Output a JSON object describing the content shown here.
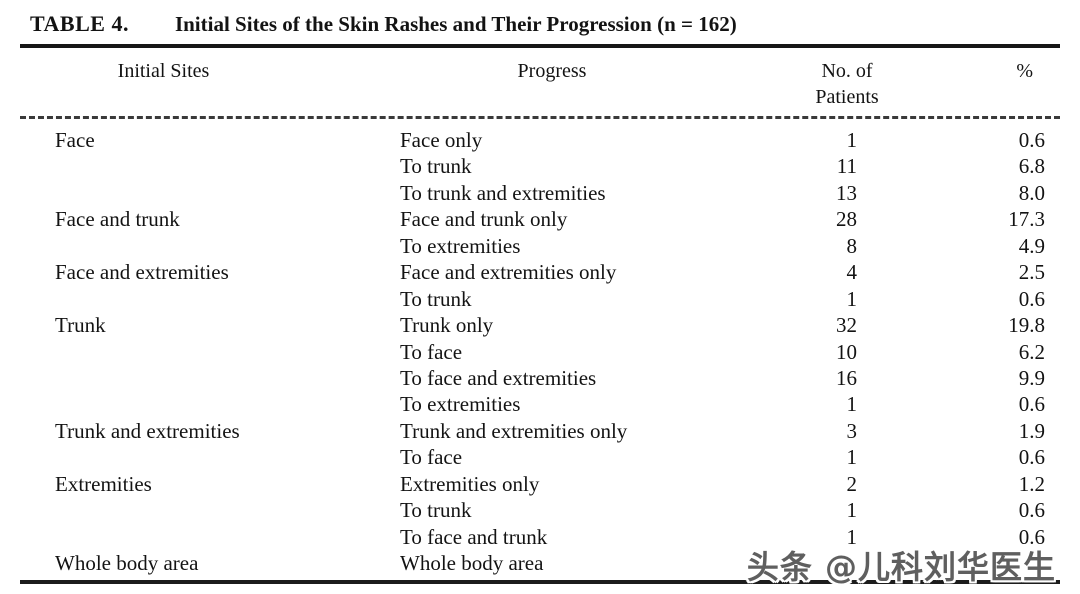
{
  "table": {
    "label": "TABLE 4.",
    "title": "Initial Sites of the Skin Rashes and Their Progression (n = 162)",
    "columns": {
      "initial_sites": "Initial Sites",
      "progress": "Progress",
      "no_of_line1": "No. of",
      "no_of_line2": "Patients",
      "percent": "%"
    },
    "rows": [
      {
        "site": "Face",
        "progress": "Face only",
        "n": "1",
        "pct": "0.6"
      },
      {
        "site": "",
        "progress": "To trunk",
        "n": "11",
        "pct": "6.8"
      },
      {
        "site": "",
        "progress": "To trunk and extremities",
        "n": "13",
        "pct": "8.0"
      },
      {
        "site": "Face and trunk",
        "progress": "Face and trunk only",
        "n": "28",
        "pct": "17.3"
      },
      {
        "site": "",
        "progress": "To extremities",
        "n": "8",
        "pct": "4.9"
      },
      {
        "site": "Face and extremities",
        "progress": "Face and extremities only",
        "n": "4",
        "pct": "2.5"
      },
      {
        "site": "",
        "progress": "To trunk",
        "n": "1",
        "pct": "0.6"
      },
      {
        "site": "Trunk",
        "progress": "Trunk only",
        "n": "32",
        "pct": "19.8"
      },
      {
        "site": "",
        "progress": "To face",
        "n": "10",
        "pct": "6.2"
      },
      {
        "site": "",
        "progress": "To face and extremities",
        "n": "16",
        "pct": "9.9"
      },
      {
        "site": "",
        "progress": "To extremities",
        "n": "1",
        "pct": "0.6"
      },
      {
        "site": "Trunk and extremities",
        "progress": "Trunk and extremities only",
        "n": "3",
        "pct": "1.9"
      },
      {
        "site": "",
        "progress": "To face",
        "n": "1",
        "pct": "0.6"
      },
      {
        "site": "Extremities",
        "progress": "Extremities only",
        "n": "2",
        "pct": "1.2"
      },
      {
        "site": "",
        "progress": "To trunk",
        "n": "1",
        "pct": "0.6"
      },
      {
        "site": "",
        "progress": "To face and trunk",
        "n": "1",
        "pct": "0.6"
      },
      {
        "site": "Whole body area",
        "progress": "Whole body area",
        "n": "",
        "pct": ""
      }
    ]
  },
  "watermark": {
    "text": "头条 @儿科刘华医生"
  }
}
